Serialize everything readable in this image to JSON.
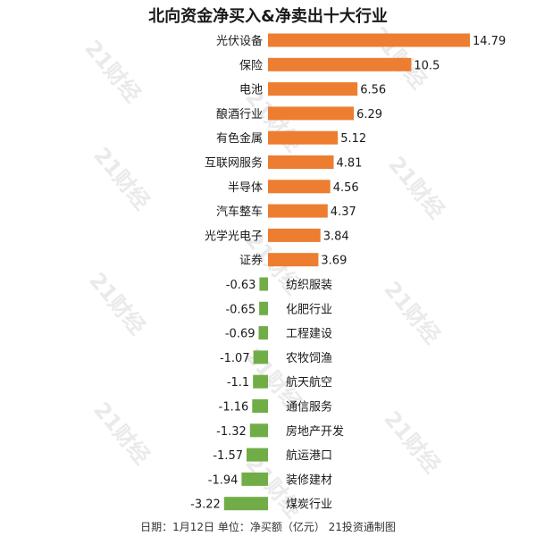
{
  "chart_data": {
    "type": "bar",
    "orientation": "horizontal",
    "title": "北向资金净买入&净卖出十大行业",
    "footer": "日期：1月12日 单位：净买额（亿元） 21投资通制图",
    "watermark": "21财经",
    "colors": {
      "positive": "#ED7D31",
      "negative": "#70AD47"
    },
    "categories": [
      "光伏设备",
      "保险",
      "电池",
      "酿酒行业",
      "有色金属",
      "互联网服务",
      "半导体",
      "汽车整车",
      "光学光电子",
      "证券",
      "纺织服装",
      "化肥行业",
      "工程建设",
      "农牧饲渔",
      "航天航空",
      "通信服务",
      "房地产开发",
      "航运港口",
      "装修建材",
      "煤炭行业"
    ],
    "values": [
      14.79,
      10.5,
      6.56,
      6.29,
      5.12,
      4.81,
      4.56,
      4.37,
      3.84,
      3.69,
      -0.63,
      -0.65,
      -0.69,
      -1.07,
      -1.1,
      -1.16,
      -1.32,
      -1.57,
      -1.94,
      -3.22
    ],
    "value_labels": [
      "14.79",
      "10.5",
      "6.56",
      "6.29",
      "5.12",
      "4.81",
      "4.56",
      "4.37",
      "3.84",
      "3.69",
      "-0.63",
      "-0.65",
      "-0.69",
      "-1.07",
      "-1.1",
      "-1.16",
      "-1.32",
      "-1.57",
      "-1.94",
      "-3.22"
    ],
    "xlabel": "",
    "ylabel": "",
    "xlim": [
      -3.22,
      14.79
    ],
    "grid": false,
    "legend": "none"
  }
}
